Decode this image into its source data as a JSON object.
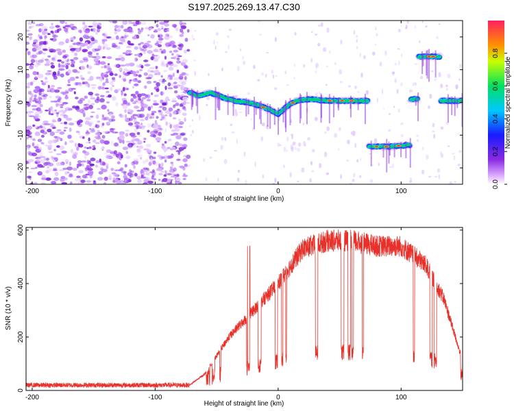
{
  "title": "S197.2025.269.13.47.C30",
  "colors": {
    "snr_line": "#e8312a",
    "axis": "#000000",
    "ridge_core": "#ff2a2a",
    "ridge_mid": "#00d070",
    "ridge_outer": "#1040ff",
    "noise": "#8a2be2"
  },
  "chart_data": [
    {
      "id": "spectrogram",
      "type": "heatmap",
      "xlabel": "Height of straight line (km)",
      "ylabel": "Frequency (Hz)",
      "xlim": [
        -205,
        150
      ],
      "ylim": [
        -25,
        25
      ],
      "xticks": [
        -200,
        -100,
        0,
        100
      ],
      "yticks": [
        -20,
        -10,
        0,
        10,
        20
      ],
      "colorbar": {
        "label": "Normalized spectral amplitude",
        "range": [
          0,
          1
        ],
        "ticks": [
          0.0,
          0.2,
          0.4,
          0.6,
          0.8
        ]
      },
      "noise_region_x": [
        -205,
        -73
      ],
      "ridge": [
        {
          "x": -72,
          "freq": 3
        },
        {
          "x": -65,
          "freq": 2
        },
        {
          "x": -55,
          "freq": 3
        },
        {
          "x": -45,
          "freq": 1.5
        },
        {
          "x": -35,
          "freq": 0.5
        },
        {
          "x": -25,
          "freq": 0
        },
        {
          "x": -15,
          "freq": -1
        },
        {
          "x": -8,
          "freq": -2
        },
        {
          "x": 0,
          "freq": -3.5
        },
        {
          "x": 8,
          "freq": -1
        },
        {
          "x": 15,
          "freq": 0.5
        },
        {
          "x": 25,
          "freq": 1
        },
        {
          "x": 40,
          "freq": 0.5
        },
        {
          "x": 55,
          "freq": 0.5
        },
        {
          "x": 72,
          "freq": 0.5
        },
        {
          "x": 74,
          "freq": -13.5
        },
        {
          "x": 90,
          "freq": -13.5
        },
        {
          "x": 106,
          "freq": -13
        },
        {
          "x": 110,
          "freq": 1
        },
        {
          "x": 118,
          "freq": 14
        },
        {
          "x": 130,
          "freq": 14
        },
        {
          "x": 134,
          "freq": 0.5
        },
        {
          "x": 150,
          "freq": 0.5
        }
      ]
    },
    {
      "id": "snr",
      "type": "line",
      "xlabel": "Height of straight line (km)",
      "ylabel": "SNR (10 * v/v)",
      "xlim": [
        -205,
        150
      ],
      "ylim": [
        0,
        610
      ],
      "xticks": [
        -200,
        -100,
        0,
        100
      ],
      "yticks": [
        0,
        200,
        400,
        600
      ],
      "envelope": [
        {
          "x": -205,
          "y": 20
        },
        {
          "x": -72,
          "y": 20
        },
        {
          "x": -60,
          "y": 60
        },
        {
          "x": -40,
          "y": 200
        },
        {
          "x": -20,
          "y": 300
        },
        {
          "x": 0,
          "y": 400
        },
        {
          "x": 20,
          "y": 530
        },
        {
          "x": 40,
          "y": 560
        },
        {
          "x": 60,
          "y": 560
        },
        {
          "x": 80,
          "y": 540
        },
        {
          "x": 100,
          "y": 540
        },
        {
          "x": 120,
          "y": 470
        },
        {
          "x": 135,
          "y": 340
        },
        {
          "x": 150,
          "y": 110
        }
      ]
    }
  ]
}
